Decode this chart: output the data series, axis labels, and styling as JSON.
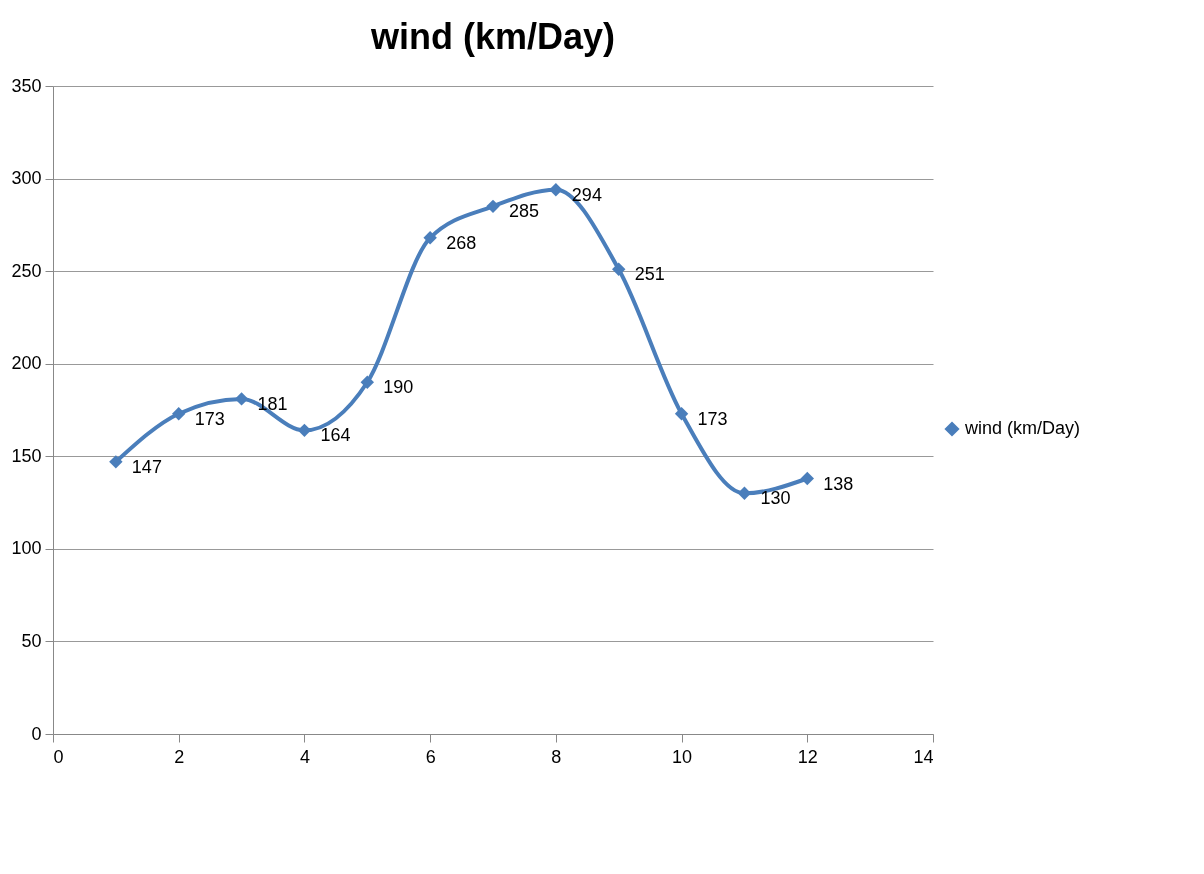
{
  "chart_data": {
    "type": "line",
    "title": "wind (km/Day)",
    "x": [
      1,
      2,
      3,
      4,
      5,
      6,
      7,
      8,
      9,
      10,
      11,
      12
    ],
    "series": [
      {
        "name": "wind (km/Day)",
        "color": "#4a7ebb",
        "values": [
          147,
          173,
          181,
          164,
          190,
          268,
          285,
          294,
          251,
          173,
          130,
          138
        ]
      }
    ],
    "xlim": [
      0,
      14
    ],
    "xticks": [
      0,
      2,
      4,
      6,
      8,
      10,
      12,
      14
    ],
    "ylim": [
      0,
      350
    ],
    "yticks": [
      0,
      50,
      100,
      150,
      200,
      250,
      300,
      350
    ],
    "grid": "y",
    "legend": "right",
    "marker": "diamond",
    "line_style": "solid",
    "data_labels": true
  }
}
